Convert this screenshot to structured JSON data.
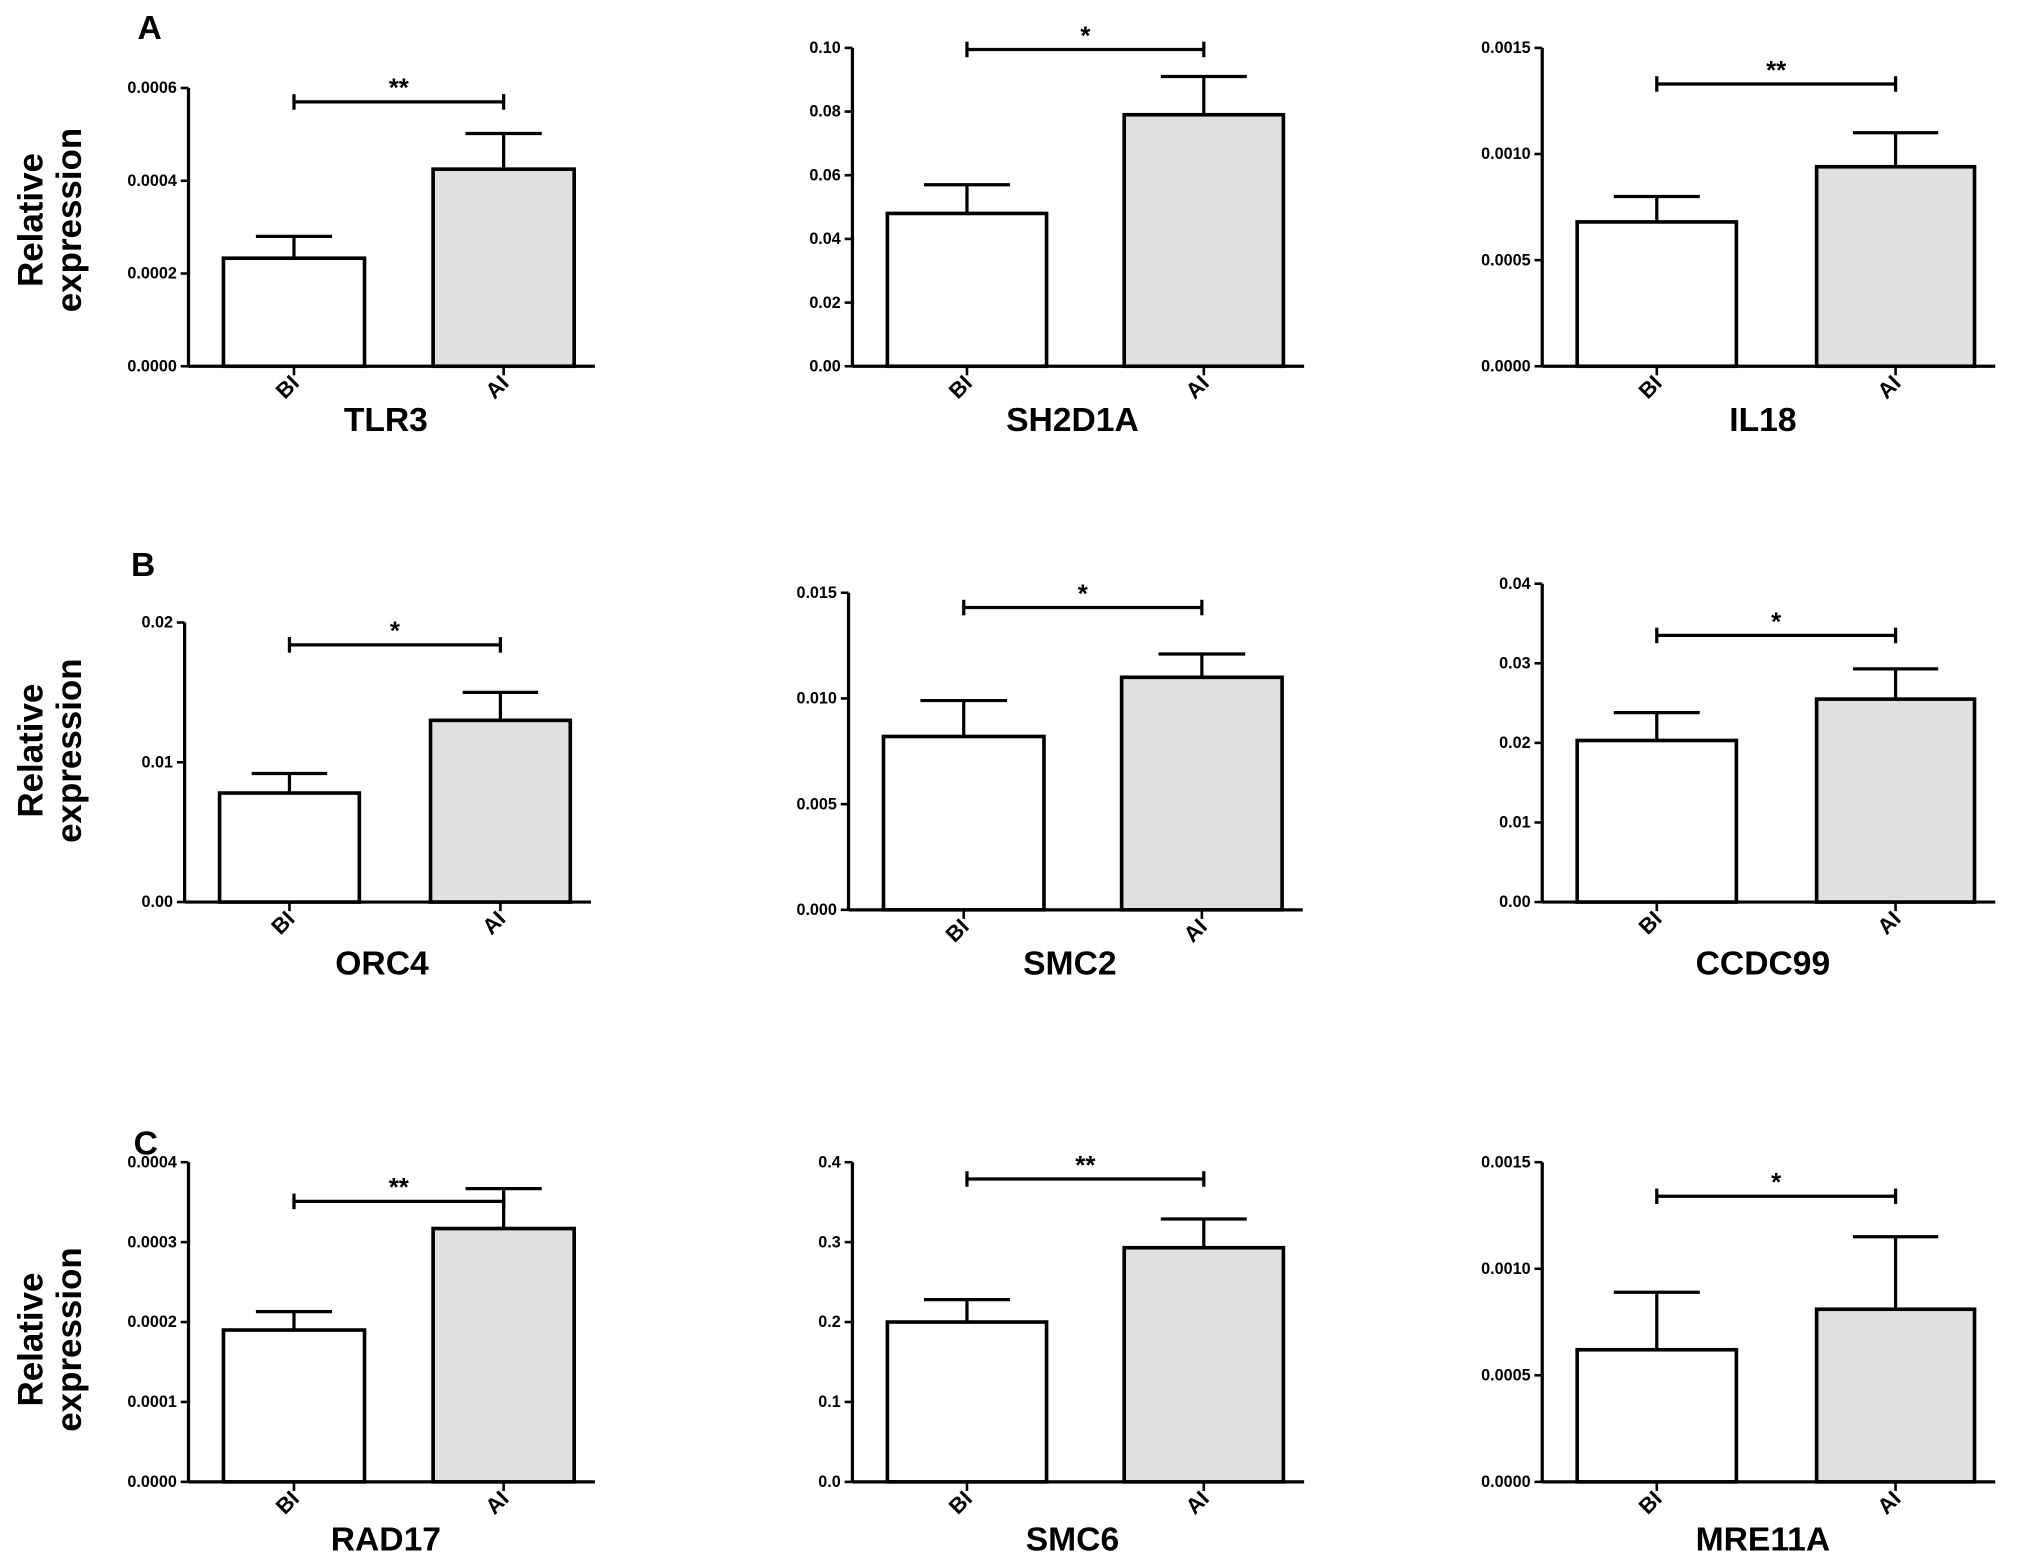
{
  "panel_labels": [
    "A",
    "B",
    "C"
  ],
  "y_axis_label": [
    "Relative",
    "expression"
  ],
  "colors": {
    "bi_fill": "#ffffff",
    "ai_fill": "#e0e0e0",
    "stroke": "#000000"
  },
  "chart_data": [
    {
      "type": "bar",
      "title": "TLR3",
      "categories": [
        "BI",
        "AI"
      ],
      "values": [
        0.000233,
        0.000425
      ],
      "errors": [
        0.00028,
        0.000502
      ],
      "ylim": [
        0,
        0.0006
      ],
      "yticks": [
        "0.0000",
        "0.0002",
        "0.0004",
        "0.0006"
      ],
      "significance": "**",
      "bracket": 0.00057
    },
    {
      "type": "bar",
      "title": "SH2D1A",
      "categories": [
        "BI",
        "AI"
      ],
      "values": [
        0.048,
        0.079
      ],
      "errors": [
        0.057,
        0.091
      ],
      "ylim": [
        0,
        0.1
      ],
      "yticks": [
        "0.00",
        "0.02",
        "0.04",
        "0.06",
        "0.08",
        "0.10"
      ],
      "significance": "*",
      "bracket": 0.0995
    },
    {
      "type": "bar",
      "title": "IL18",
      "categories": [
        "BI",
        "AI"
      ],
      "values": [
        0.00068,
        0.00094
      ],
      "errors": [
        0.0008,
        0.0011
      ],
      "ylim": [
        0,
        0.0015
      ],
      "yticks": [
        "0.0000",
        "0.0005",
        "0.0010",
        "0.0015"
      ],
      "significance": "**",
      "bracket": 0.00133
    },
    {
      "type": "bar",
      "title": "ORC4",
      "categories": [
        "BI",
        "AI"
      ],
      "values": [
        0.0078,
        0.013
      ],
      "errors": [
        0.0092,
        0.015
      ],
      "ylim": [
        0,
        0.02
      ],
      "yticks": [
        "0.00",
        "0.01",
        "0.02"
      ],
      "significance": "*",
      "bracket": 0.0184
    },
    {
      "type": "bar",
      "title": "SMC2",
      "categories": [
        "BI",
        "AI"
      ],
      "values": [
        0.0082,
        0.011
      ],
      "errors": [
        0.0099,
        0.0121
      ],
      "ylim": [
        0,
        0.015
      ],
      "yticks": [
        "0.000",
        "0.005",
        "0.010",
        "0.015"
      ],
      "significance": "*",
      "bracket": 0.0143
    },
    {
      "type": "bar",
      "title": "CCDC99",
      "categories": [
        "BI",
        "AI"
      ],
      "values": [
        0.0203,
        0.0255
      ],
      "errors": [
        0.0238,
        0.0293
      ],
      "ylim": [
        0,
        0.04
      ],
      "yticks": [
        "0.00",
        "0.01",
        "0.02",
        "0.03",
        "0.04"
      ],
      "significance": "*",
      "bracket": 0.0335
    },
    {
      "type": "bar",
      "title": "RAD17",
      "categories": [
        "BI",
        "AI"
      ],
      "values": [
        0.00019,
        0.000317
      ],
      "errors": [
        0.000213,
        0.000367
      ],
      "ylim": [
        0,
        0.0004
      ],
      "yticks": [
        "0.0000",
        "0.0001",
        "0.0002",
        "0.0003",
        "0.0004"
      ],
      "significance": "**",
      "bracket": 0.000351
    },
    {
      "type": "bar",
      "title": "SMC6",
      "categories": [
        "BI",
        "AI"
      ],
      "values": [
        0.2,
        0.293
      ],
      "errors": [
        0.228,
        0.329
      ],
      "ylim": [
        0,
        0.4
      ],
      "yticks": [
        "0.0",
        "0.1",
        "0.2",
        "0.3",
        "0.4"
      ],
      "significance": "**",
      "bracket": 0.379
    },
    {
      "type": "bar",
      "title": "MRE11A",
      "categories": [
        "BI",
        "AI"
      ],
      "values": [
        0.00062,
        0.00081
      ],
      "errors": [
        0.00089,
        0.00115
      ],
      "ylim": [
        0,
        0.0015
      ],
      "yticks": [
        "0.0000",
        "0.0005",
        "0.0010",
        "0.0015"
      ],
      "significance": "*",
      "bracket": 0.00134
    }
  ]
}
